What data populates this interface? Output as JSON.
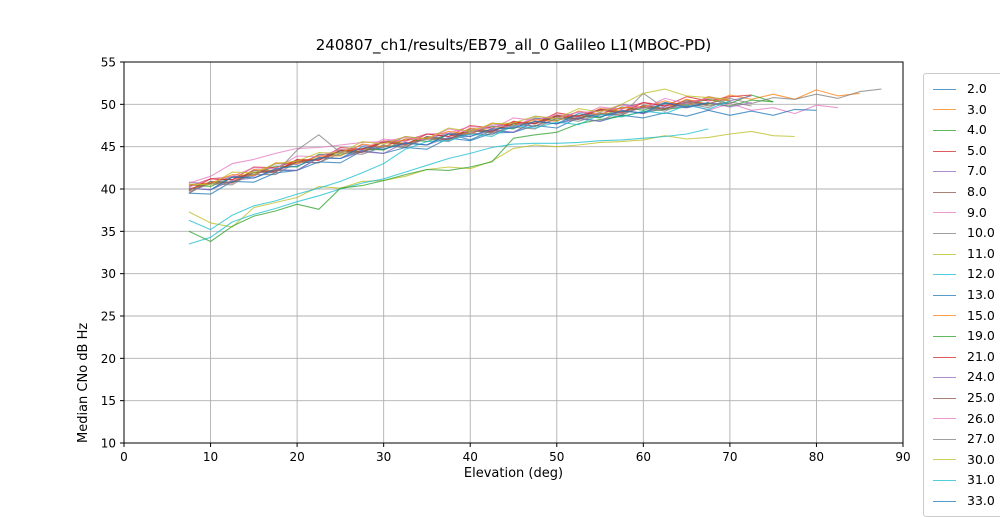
{
  "chart_data": {
    "type": "line",
    "title": "240807_ch1/results/EB79_all_0 Galileo L1(MBOC-PD)",
    "xlabel": "Elevation (deg)",
    "ylabel": "Median CNo dB Hz",
    "xlim": [
      0,
      90
    ],
    "ylim": [
      10,
      55
    ],
    "xticks": [
      0,
      10,
      20,
      30,
      40,
      50,
      60,
      70,
      80,
      90
    ],
    "yticks": [
      10,
      15,
      20,
      25,
      30,
      35,
      40,
      45,
      50,
      55
    ],
    "grid": true,
    "grid_color": "#b0b0b0",
    "line_opacity": 0.75,
    "legend": {
      "position": "outside-right",
      "clipped_right": true,
      "clipped_bottom": true,
      "last_visible_entry_partial": "33.0"
    },
    "series": [
      {
        "name": "2.0",
        "color": "#1f77b4",
        "x_start": 7.5,
        "x_step": 2.5,
        "values": [
          40.1,
          39.9,
          41.4,
          41.3,
          42.2,
          42.2,
          43.7,
          43.6,
          44.6,
          44.7,
          45.5,
          45.2,
          46.5,
          45.8,
          46.9,
          46.7,
          48.0,
          47.7,
          48.5,
          48.5,
          49.3,
          48.9,
          50.1,
          49.6,
          50.1,
          50.1
        ]
      },
      {
        "name": "3.0",
        "color": "#ff7f0e",
        "x_start": 7.5,
        "x_step": 2.5,
        "values": [
          40.0,
          40.8,
          40.8,
          42.3,
          42.2,
          43.3,
          43.6,
          44.6,
          44.4,
          45.7,
          45.4,
          46.1,
          45.9,
          47.2,
          46.9,
          47.8,
          47.9,
          48.7,
          48.3,
          49.5,
          49.2,
          49.8,
          49.5,
          50.6,
          50.0,
          51.1,
          50.6,
          51.2,
          50.6,
          51.7,
          51.0,
          51.3
        ]
      },
      {
        "name": "4.0",
        "color": "#2ca02c",
        "x_start": 7.5,
        "x_step": 2.5,
        "values": [
          40.5,
          40.3,
          41.4,
          41.7,
          42.7,
          42.6,
          44.1,
          44.0,
          44.8,
          44.6,
          45.9,
          45.6,
          46.5,
          46.6,
          47.4,
          47.1,
          48.4,
          48.1,
          48.7,
          48.4,
          49.7,
          49.3,
          50.1,
          50.0,
          50.6,
          50.1,
          51.1,
          50.3
        ]
      },
      {
        "name": "5.0",
        "color": "#d62728",
        "x_start": 7.5,
        "x_step": 2.5,
        "values": [
          40.3,
          41.2,
          41.1,
          42.6,
          42.5,
          43.4,
          43.4,
          44.9,
          44.7,
          45.6,
          45.7,
          46.5,
          46.2,
          47.5,
          47.2,
          47.9,
          47.7,
          49.0,
          48.6,
          49.4,
          49.5,
          50.2,
          49.8,
          50.9,
          50.4,
          50.9,
          51.1
        ]
      },
      {
        "name": "7.0",
        "color": "#9467bd",
        "x_start": 7.5,
        "x_step": 2.5,
        "values": [
          40.8,
          40.6,
          41.5,
          41.5,
          43.0,
          42.9,
          44.0,
          44.3,
          45.2,
          44.9,
          46.2,
          45.9,
          46.6,
          46.4,
          47.7,
          47.4,
          48.3,
          48.4,
          49.1,
          48.7,
          50.0,
          49.6,
          50.2,
          49.8,
          50.9,
          50.4,
          51.0
        ]
      },
      {
        "name": "8.0",
        "color": "#8c564b",
        "x_start": 7.5,
        "x_step": 2.5,
        "values": [
          39.5,
          40.9,
          40.8,
          41.9,
          42.2,
          43.2,
          43.1,
          44.6,
          44.4,
          45.1,
          44.9,
          46.2,
          45.9,
          46.8,
          46.9,
          47.7,
          47.4,
          48.7,
          48.3,
          48.9,
          48.7,
          49.9,
          49.5,
          50.2,
          50.1,
          50.7
        ]
      },
      {
        "name": "9.0",
        "color": "#e377c2",
        "x_start": 7.5,
        "x_step": 2.5,
        "values": [
          40.2,
          41.2,
          41.5,
          42.5,
          42.4,
          43.9,
          43.8,
          44.7,
          44.6,
          45.9,
          45.6,
          46.5,
          46.6,
          47.4,
          47.1,
          48.4,
          48.1,
          48.8,
          48.5,
          49.7,
          49.4,
          50.2,
          49.9,
          50.1,
          49.3,
          50.1,
          49.3,
          49.6,
          48.9,
          49.9,
          49.6
        ]
      },
      {
        "name": "10.0",
        "color": "#7f7f7f",
        "x_start": 7.5,
        "x_step": 2.5,
        "values": [
          39.5,
          40.9,
          40.8,
          41.7,
          41.7,
          43.2,
          43.1,
          44.2,
          44.4,
          45.2,
          44.9,
          46.2,
          45.9,
          46.6,
          46.4,
          47.7,
          47.4,
          48.3,
          48.3,
          49.0,
          48.7,
          51.3,
          49.5,
          50.1,
          49.6,
          50.7,
          50.1,
          50.8,
          50.6,
          51.2,
          50.7,
          51.5,
          51.8
        ]
      },
      {
        "name": "11.0",
        "color": "#bcbd22",
        "x_start": 7.5,
        "x_step": 2.5,
        "values": [
          37.3,
          36.0,
          35.5,
          37.8,
          38.4,
          39.0,
          40.3,
          40.1,
          40.9,
          41.0,
          41.5,
          42.3,
          42.6,
          42.4,
          43.3,
          44.8,
          45.2,
          45.0,
          45.2,
          45.5,
          45.6,
          45.8,
          46.3,
          45.9,
          46.1,
          46.5,
          46.8,
          46.3,
          46.2
        ]
      },
      {
        "name": "12.0",
        "color": "#17becf",
        "x_start": 7.5,
        "x_step": 2.5,
        "values": [
          33.5,
          34.3,
          36.1,
          37.0,
          37.7,
          38.5,
          39.2,
          40.0,
          40.7,
          41.2,
          42.0,
          42.8,
          43.6,
          44.2,
          44.9,
          45.3,
          45.4,
          45.4,
          45.5,
          45.7,
          45.8,
          46.0,
          46.2,
          46.5,
          47.1
        ]
      },
      {
        "name": "13.0",
        "color": "#1f77b4",
        "x_start": 7.5,
        "x_step": 2.5,
        "values": [
          39.5,
          39.4,
          40.9,
          40.8,
          41.9,
          42.2,
          43.2,
          43.1,
          44.5,
          44.2,
          44.9,
          44.7,
          46.0,
          45.7,
          46.6,
          46.7,
          47.5,
          47.2,
          48.4,
          48.0,
          48.7,
          48.4,
          49.0,
          48.6,
          49.3,
          48.7,
          49.2,
          48.7,
          49.4,
          49.3
        ]
      },
      {
        "name": "15.0",
        "color": "#ff7f0e",
        "x_start": 7.5,
        "x_step": 2.5,
        "values": [
          40.5,
          40.7,
          41.7,
          41.6,
          43.1,
          43.0,
          43.9,
          43.9,
          45.3,
          45.0,
          45.9,
          46.0,
          46.8,
          46.5,
          47.8,
          47.5,
          48.2,
          48.0,
          49.2,
          48.8,
          49.6,
          49.7,
          50.4,
          49.8,
          50.9,
          50.4
        ]
      },
      {
        "name": "19.0",
        "color": "#2ca02c",
        "x_start": 7.5,
        "x_step": 2.5,
        "values": [
          35.0,
          33.8,
          35.6,
          36.8,
          37.4,
          38.2,
          37.6,
          40.1,
          40.4,
          41.0,
          41.7,
          42.3,
          42.2,
          42.6,
          43.2,
          46.0,
          46.4,
          46.7,
          47.7,
          48.2,
          48.6,
          49.1,
          49.4,
          49.7,
          50.1,
          49.8,
          50.5,
          50.3
        ]
      },
      {
        "name": "21.0",
        "color": "#d62728",
        "x_start": 7.5,
        "x_step": 2.5,
        "values": [
          39.8,
          41.2,
          41.1,
          42.0,
          42.0,
          43.5,
          43.4,
          44.5,
          44.7,
          45.5,
          45.2,
          46.5,
          46.2,
          46.9,
          46.7,
          48.0,
          47.7,
          48.6,
          48.6,
          49.3,
          49.0,
          50.2,
          49.8,
          50.3,
          50.6
        ]
      },
      {
        "name": "24.0",
        "color": "#9467bd",
        "x_start": 7.5,
        "x_step": 2.5,
        "values": [
          40.1,
          39.9,
          41.0,
          41.3,
          42.3,
          42.2,
          43.7,
          43.6,
          44.4,
          44.2,
          45.5,
          45.2,
          46.1,
          46.2,
          47.0,
          46.7,
          48.0,
          47.7,
          48.3,
          48.0,
          49.3,
          48.9,
          49.7,
          49.6,
          50.2,
          49.7,
          50.2
        ]
      },
      {
        "name": "25.0",
        "color": "#8c564b",
        "x_start": 7.5,
        "x_step": 2.5,
        "values": [
          39.9,
          40.7,
          40.7,
          42.2,
          42.1,
          43.2,
          43.5,
          44.5,
          44.3,
          45.6,
          45.3,
          46.0,
          45.8,
          47.1,
          46.8,
          47.7,
          47.8,
          48.6,
          48.2,
          49.4,
          49.1,
          49.7,
          49.4,
          50.5,
          49.9
        ]
      },
      {
        "name": "26.0",
        "color": "#e377c2",
        "x_start": 7.5,
        "x_step": 2.5,
        "values": [
          40.7,
          41.5,
          43.0,
          43.5,
          44.2,
          44.8,
          44.9,
          45.2,
          45.5,
          45.6,
          46.1,
          45.8,
          47.1,
          46.7,
          47.5,
          47.3,
          48.6,
          48.3,
          49.1,
          49.1,
          49.9,
          49.5,
          50.7,
          50.1,
          50.7,
          50.7
        ]
      },
      {
        "name": "27.0",
        "color": "#7f7f7f",
        "x_start": 7.5,
        "x_step": 2.5,
        "values": [
          39.7,
          40.6,
          40.5,
          42.0,
          41.9,
          44.6,
          46.4,
          44.3,
          44.1,
          45.0,
          45.1,
          45.9,
          45.6,
          46.9,
          46.6,
          47.3,
          47.1,
          48.4,
          48.0,
          48.8,
          48.9,
          49.6,
          49.2,
          50.3,
          49.8,
          50.3,
          49.8
        ]
      },
      {
        "name": "30.0",
        "color": "#bcbd22",
        "x_start": 7.5,
        "x_step": 2.5,
        "values": [
          40.6,
          40.5,
          42.0,
          41.9,
          43.0,
          43.3,
          44.3,
          44.2,
          45.6,
          45.3,
          46.2,
          45.9,
          47.2,
          46.8,
          47.7,
          47.8,
          48.6,
          48.3,
          49.5,
          49.1,
          50.0,
          51.3,
          51.8,
          51.0,
          50.8,
          50.6
        ]
      },
      {
        "name": "31.0",
        "color": "#17becf",
        "x_start": 7.5,
        "x_step": 2.5,
        "values": [
          36.3,
          35.2,
          36.9,
          38.0,
          38.6,
          39.4,
          40.1,
          40.9,
          41.9,
          43.0,
          44.7,
          45.6,
          45.7,
          46.5,
          46.2,
          47.5,
          47.2,
          47.9,
          47.6,
          48.8,
          48.5,
          49.2,
          48.9,
          49.9,
          49.4,
          50.4
        ]
      },
      {
        "name": "33.0",
        "color": "#1f77b4",
        "x_start": 10,
        "x_step": 2.5,
        "values": [
          39.9,
          41.4,
          41.3,
          42.4,
          42.7,
          43.7,
          43.6,
          45.0,
          44.7,
          45.4,
          45.2,
          46.5,
          46.2,
          47.1,
          47.2,
          48.0,
          47.7,
          48.9,
          48.5,
          49.2,
          49.0,
          50.2,
          49.7,
          50.2
        ]
      }
    ]
  }
}
